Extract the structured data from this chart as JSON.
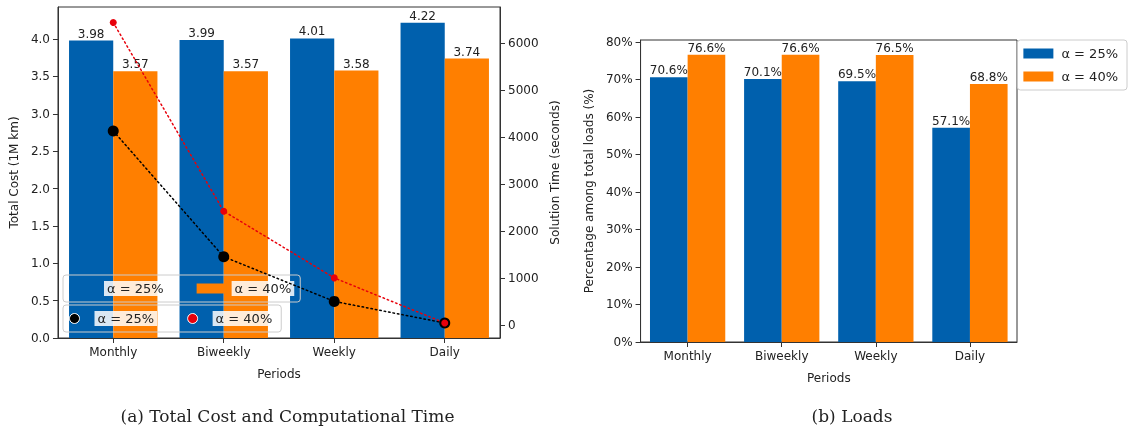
{
  "chart_data": [
    {
      "type": "bar",
      "xlabel": "Periods",
      "ylabel": "Total Cost (1M km)",
      "y2label": "Solution Time (seconds)",
      "categories": [
        "Monthly",
        "Biweekly",
        "Weekly",
        "Daily"
      ],
      "series": [
        {
          "name": "α = 25%",
          "color": "#0060ad",
          "values": [
            3.98,
            3.99,
            4.01,
            4.22
          ],
          "value_labels": [
            "3.98",
            "3.99",
            "4.01",
            "4.22"
          ]
        },
        {
          "name": "α = 40%",
          "color": "#ff7f00",
          "values": [
            3.57,
            3.57,
            3.58,
            3.74
          ],
          "value_labels": [
            "3.57",
            "3.57",
            "3.58",
            "3.74"
          ]
        },
        {
          "name": "α = 25%",
          "type": "line",
          "axis": "y2",
          "color": "#000000",
          "values": [
            4130,
            1450,
            500,
            40
          ]
        },
        {
          "name": "α = 40%",
          "type": "line",
          "axis": "y2",
          "color": "#e8000b",
          "values": [
            6440,
            2420,
            1000,
            40
          ]
        }
      ],
      "marker": "circle",
      "line_style": "dotted",
      "ylim": [
        0,
        4.43
      ],
      "yticks": [
        {
          "value": 0,
          "label": "0.0"
        },
        0.5,
        {
          "value": 1,
          "label": "1.0"
        },
        1.5,
        {
          "value": 2,
          "label": "2.0"
        },
        2.5,
        {
          "value": 3,
          "label": "3.0"
        },
        3.5,
        {
          "value": 4,
          "label": "4.0"
        }
      ],
      "y2lim": [
        -280,
        6770
      ],
      "y2ticks": [
        0,
        1000,
        2000,
        3000,
        4000,
        5000,
        6000
      ],
      "grid": false,
      "legend": "bottom left",
      "annotations": [
        "(a) Total Cost and Computational Time"
      ]
    },
    {
      "type": "bar",
      "xlabel": "Periods",
      "ylabel": "Percentage among total loads (%)",
      "categories": [
        "Monthly",
        "Biweekly",
        "Weekly",
        "Daily"
      ],
      "series": [
        {
          "name": "α = 25%",
          "color": "#0060ad",
          "values": [
            70.6,
            70.1,
            69.5,
            57.1
          ],
          "value_labels": [
            "70.6%",
            "70.1%",
            "69.5%",
            "57.1%"
          ]
        },
        {
          "name": "α = 40%",
          "color": "#ff7f00",
          "values": [
            76.6,
            76.6,
            76.5,
            68.8
          ],
          "value_labels": [
            "76.6%",
            "76.6%",
            "76.5%",
            "68.8%"
          ]
        }
      ],
      "ylim": [
        0,
        80.5
      ],
      "yticks": [
        {
          "value": 0,
          "label": "0%"
        },
        {
          "value": 10,
          "label": "10%"
        },
        {
          "value": 20,
          "label": "20%"
        },
        {
          "value": 30,
          "label": "30%"
        },
        {
          "value": 40,
          "label": "40%"
        },
        {
          "value": 50,
          "label": "50%"
        },
        {
          "value": 60,
          "label": "60%"
        },
        {
          "value": 70,
          "label": "70%"
        },
        {
          "value": 80,
          "label": "80%"
        }
      ],
      "grid": false,
      "legend": "top right",
      "annotations": [
        "(b) Loads"
      ]
    }
  ]
}
